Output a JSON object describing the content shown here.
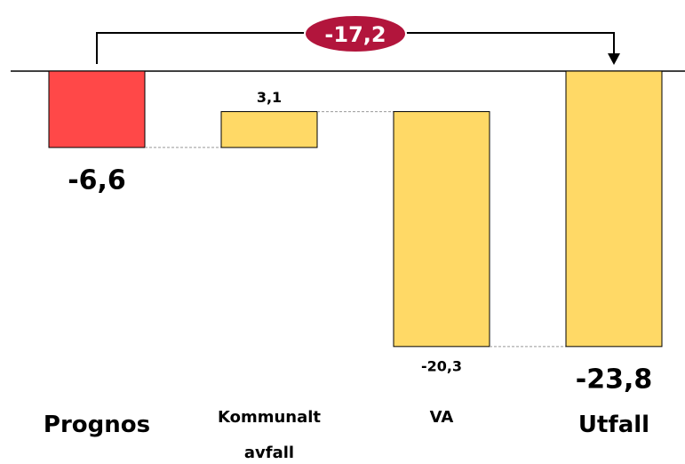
{
  "chart_data": {
    "type": "waterfall",
    "categories": [
      "Prognos",
      "Kommunalt avfall",
      "VA",
      "Utfall"
    ],
    "measure": [
      "absolute",
      "relative",
      "relative",
      "total"
    ],
    "values": [
      -6.6,
      3.1,
      -20.3,
      -23.8
    ],
    "value_labels": [
      "-6,6",
      "3,1",
      "-20,3",
      "-23,8"
    ],
    "colors": [
      "#ff4848",
      "#ffd966",
      "#ffd966",
      "#ffd966"
    ],
    "ylim": [
      -26.5,
      0
    ],
    "annotation": "-17,2"
  }
}
